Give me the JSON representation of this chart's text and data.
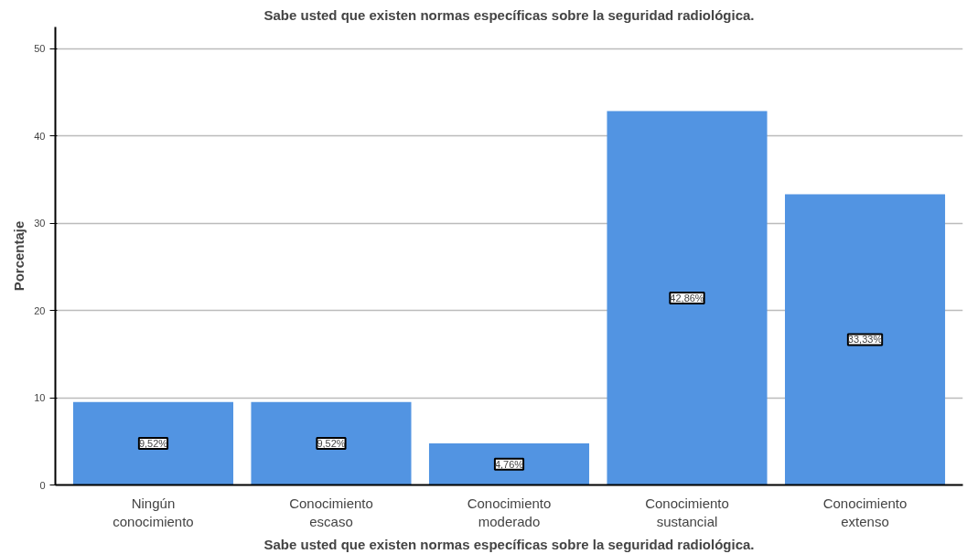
{
  "chart_data": {
    "type": "bar",
    "title": "Sabe usted que existen normas específicas sobre la seguridad radiológica.",
    "xlabel": "Sabe usted que existen normas específicas sobre la seguridad radiológica.",
    "ylabel": "Porcentaje",
    "categories": [
      "Ningún\nconocimiento",
      "Conocimiento\nescaso",
      "Conocimiento\nmoderado",
      "Conocimiento\nsustancial",
      "Conocimiento\nextenso"
    ],
    "values": [
      9.52,
      9.52,
      4.76,
      42.86,
      33.33
    ],
    "value_labels": [
      "9,52%",
      "9,52%",
      "4,76%",
      "42,86%",
      "33,33%"
    ],
    "color": "#5294e2",
    "ylim": [
      0,
      52.5
    ],
    "yticks": [
      0,
      10,
      20,
      30,
      40,
      50
    ],
    "grid": "y"
  }
}
